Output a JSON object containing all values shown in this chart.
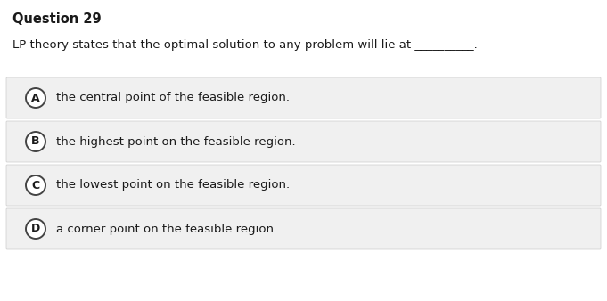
{
  "title": "Question 29",
  "question": "LP theory states that the optimal solution to any problem will lie at __________.",
  "options": [
    {
      "label": "A",
      "text": "the central point of the feasible region."
    },
    {
      "label": "B",
      "text": "the highest point on the feasible region."
    },
    {
      "label": "C",
      "text": "the lowest point on the feasible region."
    },
    {
      "label": "D",
      "text": "a corner point on the feasible region."
    }
  ],
  "bg_color": "#ffffff",
  "option_bg_color": "#f0f0f0",
  "option_border_color": "#cccccc",
  "title_color": "#1a1a1a",
  "question_color": "#1a1a1a",
  "option_text_color": "#1a1a1a",
  "circle_edge_color": "#444444",
  "circle_face_color": "#ffffff",
  "title_fontsize": 10.5,
  "question_fontsize": 9.5,
  "option_fontsize": 9.5,
  "label_fontsize": 9.0,
  "figwidth": 6.81,
  "figheight": 3.38,
  "dpi": 100
}
